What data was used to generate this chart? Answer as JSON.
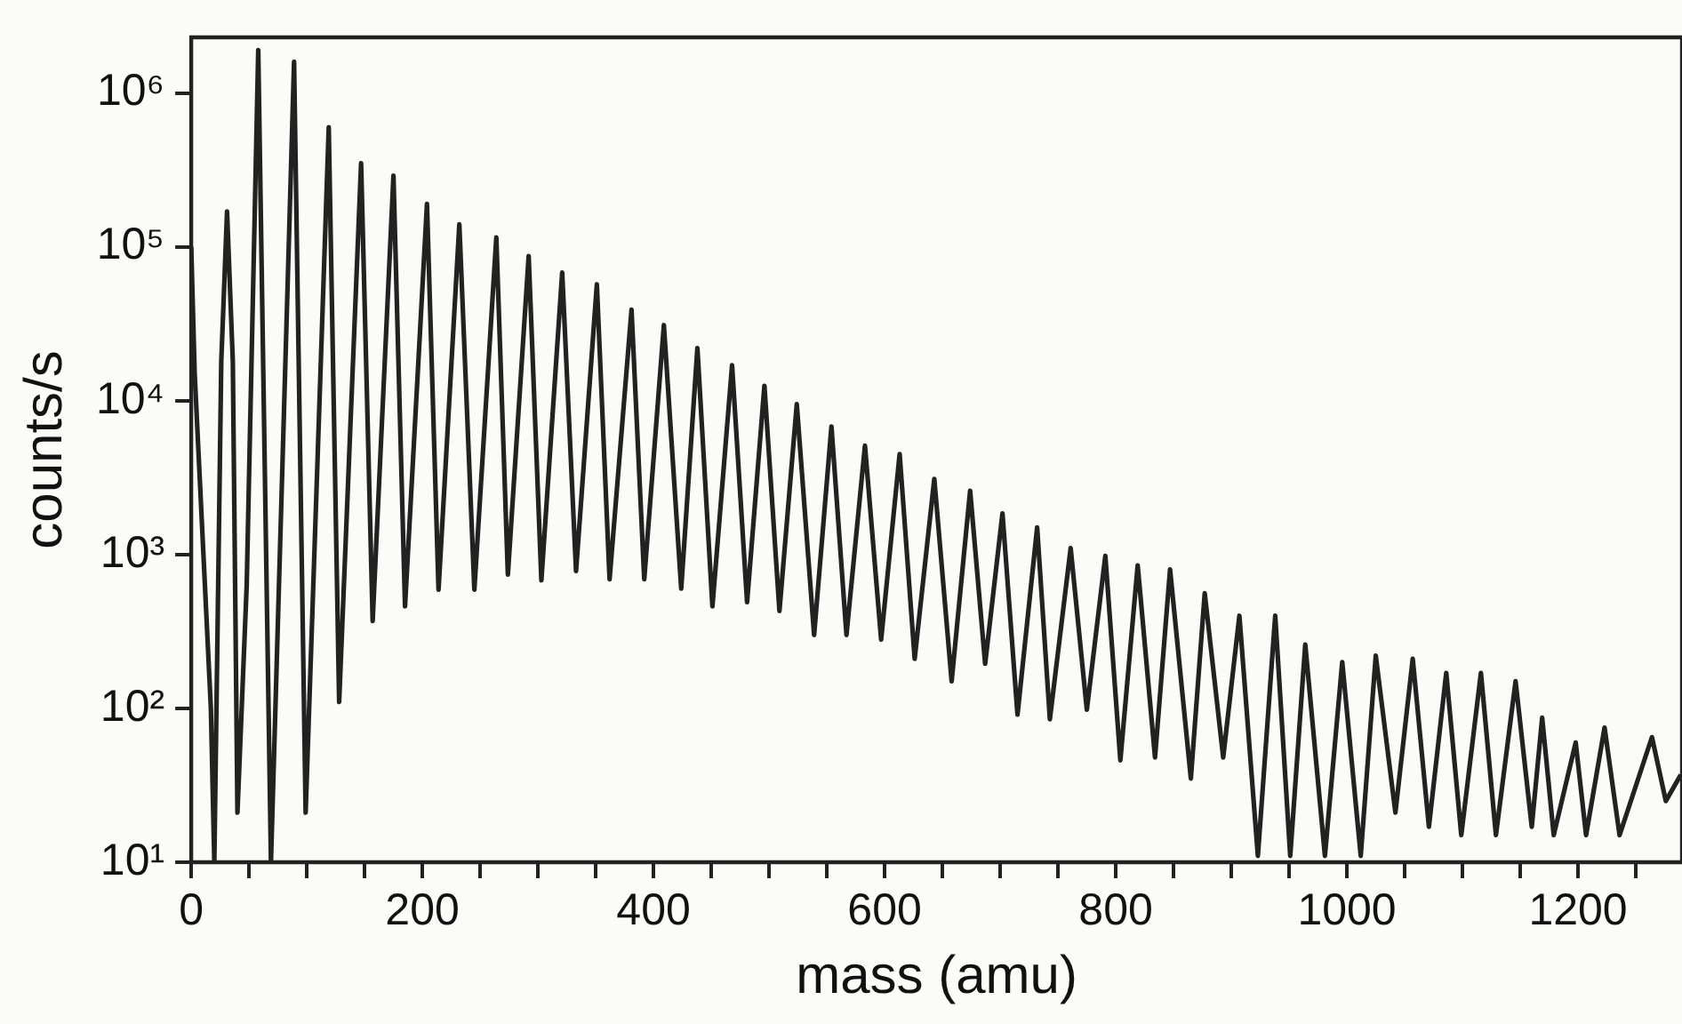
{
  "chart_data": {
    "type": "line",
    "xlabel": "mass (amu)",
    "ylabel": "counts/s",
    "log": "y",
    "grid": false,
    "legend": false,
    "marker": "none",
    "line_style": "solid",
    "xlim": [
      0,
      1290
    ],
    "ylim": [
      10,
      2300000
    ],
    "xticks": [
      0,
      {
        "value": 50,
        "label": null
      },
      {
        "value": 100,
        "label": null
      },
      {
        "value": 150,
        "label": null
      },
      200,
      {
        "value": 250,
        "label": null
      },
      {
        "value": 300,
        "label": null
      },
      {
        "value": 350,
        "label": null
      },
      400,
      {
        "value": 450,
        "label": null
      },
      {
        "value": 500,
        "label": null
      },
      {
        "value": 550,
        "label": null
      },
      600,
      {
        "value": 650,
        "label": null
      },
      {
        "value": 700,
        "label": null
      },
      {
        "value": 750,
        "label": null
      },
      800,
      {
        "value": 850,
        "label": null
      },
      {
        "value": 900,
        "label": null
      },
      {
        "value": 950,
        "label": null
      },
      1000,
      {
        "value": 1050,
        "label": null
      },
      {
        "value": 1100,
        "label": null
      },
      {
        "value": 1150,
        "label": null
      },
      1200,
      {
        "value": 1250,
        "label": null
      }
    ],
    "yticks": [
      {
        "value": 10,
        "label": "10¹"
      },
      {
        "value": 100,
        "label": "10²"
      },
      {
        "value": 1000,
        "label": "10³"
      },
      {
        "value": 10000,
        "label": "10⁴"
      },
      {
        "value": 100000,
        "label": "10⁵"
      },
      {
        "value": 1000000,
        "label": "10⁶"
      }
    ],
    "series": [
      {
        "color": "#222222",
        "x": [
          0,
          3,
          17,
          20,
          26,
          31,
          36,
          40,
          48,
          58,
          69,
          89,
          99,
          119,
          128,
          147,
          157,
          175,
          185,
          204,
          214,
          232,
          245,
          264,
          274,
          292,
          303,
          321,
          333,
          351,
          362,
          381,
          392,
          409,
          424,
          438,
          451,
          468,
          481,
          496,
          509,
          524,
          539,
          554,
          567,
          583,
          597,
          613,
          626,
          643,
          658,
          674,
          687,
          702,
          715,
          732,
          743,
          761,
          775,
          791,
          804,
          819,
          834,
          847,
          865,
          877,
          893,
          907,
          923,
          938,
          951,
          964,
          981,
          996,
          1012,
          1025,
          1042,
          1057,
          1071,
          1086,
          1099,
          1116,
          1129,
          1146,
          1160,
          1169,
          1179,
          1198,
          1207,
          1223,
          1236,
          1264,
          1276,
          1289
        ],
        "values": [
          100000,
          15000,
          100,
          10,
          18000,
          170000,
          18000,
          21,
          630,
          1900000,
          10,
          1600000,
          21,
          600000,
          110,
          350000,
          370,
          290000,
          460,
          190000,
          590,
          140000,
          590,
          115000,
          740,
          87000,
          680,
          68000,
          780,
          57000,
          690,
          39000,
          690,
          31000,
          600,
          22000,
          460,
          17000,
          490,
          12500,
          430,
          9500,
          300,
          6800,
          300,
          5100,
          280,
          4500,
          210,
          3100,
          150,
          2600,
          195,
          1850,
          91,
          1500,
          85,
          1100,
          98,
          980,
          46,
          850,
          48,
          800,
          35,
          560,
          48,
          400,
          11,
          400,
          11,
          260,
          11,
          200,
          11,
          220,
          21,
          210,
          17,
          170,
          15,
          170,
          15,
          150,
          17,
          87,
          15,
          60,
          15,
          75,
          15,
          65,
          25,
          37
        ]
      }
    ]
  }
}
